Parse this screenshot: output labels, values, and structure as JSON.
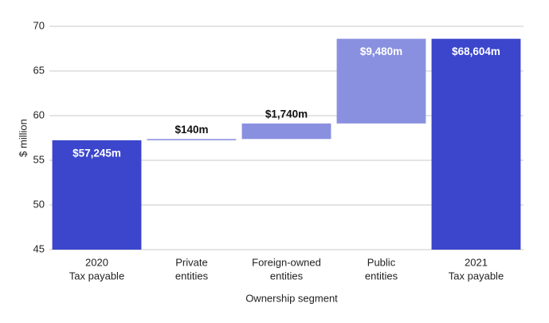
{
  "chart_data": {
    "type": "waterfall",
    "y_label": "$ million",
    "x_label": "Ownership segment",
    "categories": [
      [
        "2020",
        "Tax payable"
      ],
      [
        "Private",
        "entities"
      ],
      [
        "Foreign-owned",
        "entities"
      ],
      [
        "Public",
        "entities"
      ],
      [
        "2021",
        "Tax payable"
      ]
    ],
    "measure": [
      "absolute",
      "relative",
      "relative",
      "relative",
      "absolute"
    ],
    "values": [
      57.245,
      0.14,
      1.74,
      9.48,
      68.604
    ],
    "value_labels": [
      "$57,245m",
      "$140m",
      "$1,740m",
      "$9,480m",
      "$68,604m"
    ],
    "total_color": "#3b46cc",
    "change_color": "#8a90e0",
    "ylim": [
      45,
      70
    ],
    "yticks": [
      45,
      50,
      55,
      60,
      65,
      70
    ],
    "grid": true
  }
}
